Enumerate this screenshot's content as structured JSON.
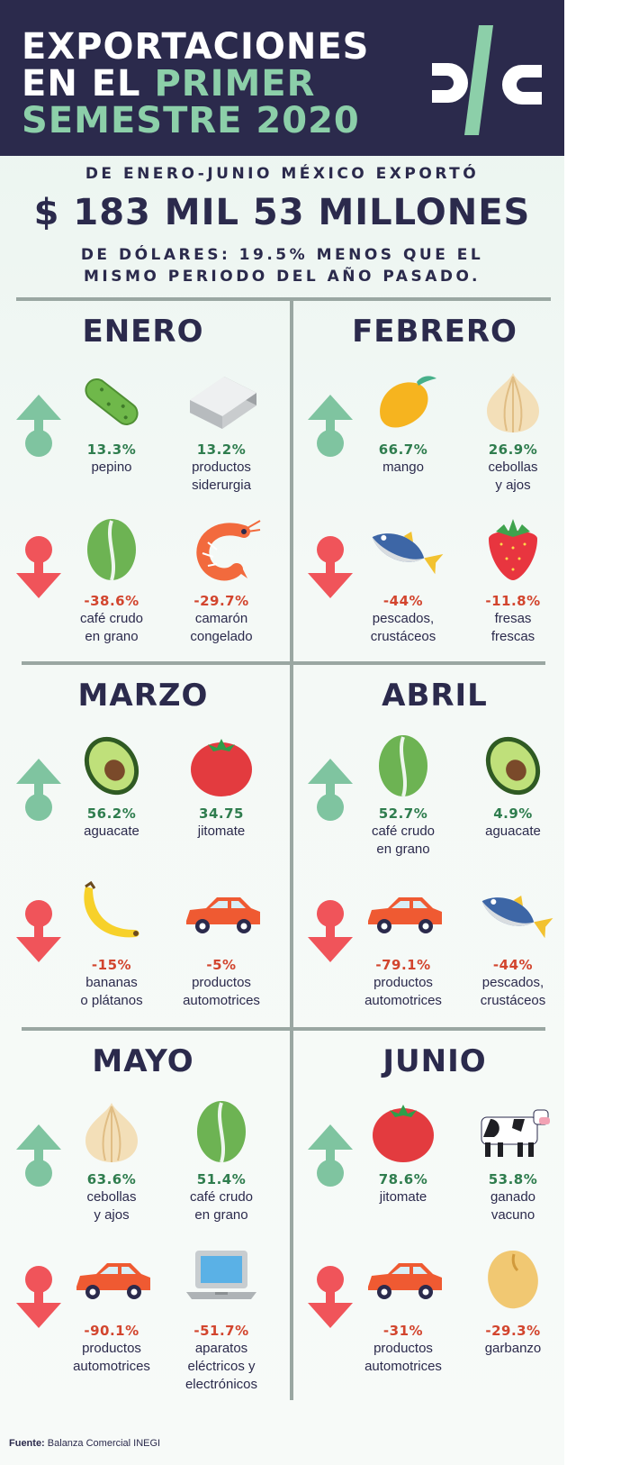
{
  "header": {
    "title_lines": [
      "EXPORTACIONES",
      "EN EL",
      "PRIMER",
      "SEMESTRE 2020"
    ]
  },
  "intro": {
    "line1": "DE ENERO-JUNIO MÉXICO EXPORTÓ",
    "amount": "$ 183 MIL 53 MILLONES",
    "line2_a": "DE DÓLARES: ",
    "line2_b": "19.5% MENOS",
    "line2_c": " QUE EL",
    "line3": "MISMO PERIODO DEL AÑO PASADO."
  },
  "months": [
    {
      "name": "ENERO",
      "up": [
        {
          "pct": "13.3%",
          "label": [
            "pepino"
          ],
          "icon": "cucumber-icon"
        },
        {
          "pct": "13.2%",
          "label": [
            "productos",
            "siderurgia"
          ],
          "icon": "steel-bar-icon"
        }
      ],
      "down": [
        {
          "pct": "-38.6%",
          "label": [
            "café crudo",
            "en grano"
          ],
          "icon": "coffee-bean-icon"
        },
        {
          "pct": "-29.7%",
          "label": [
            "camarón",
            "congelado"
          ],
          "icon": "shrimp-icon"
        }
      ]
    },
    {
      "name": "FEBRERO",
      "up": [
        {
          "pct": "66.7%",
          "label": [
            "mango"
          ],
          "icon": "mango-icon"
        },
        {
          "pct": "26.9%",
          "label": [
            "cebollas",
            "y ajos"
          ],
          "icon": "garlic-icon"
        }
      ],
      "down": [
        {
          "pct": "-44%",
          "label": [
            "pescados,",
            "crustáceos"
          ],
          "icon": "fish-icon"
        },
        {
          "pct": "-11.8%",
          "label": [
            "fresas",
            "frescas"
          ],
          "icon": "strawberry-icon"
        }
      ]
    },
    {
      "name": "MARZO",
      "up": [
        {
          "pct": "56.2%",
          "label": [
            "aguacate"
          ],
          "icon": "avocado-icon"
        },
        {
          "pct": "34.75",
          "label": [
            "jitomate"
          ],
          "icon": "tomato-icon"
        }
      ],
      "down": [
        {
          "pct": "-15%",
          "label": [
            "bananas",
            "o plátanos"
          ],
          "icon": "banana-icon"
        },
        {
          "pct": "-5%",
          "label": [
            "productos",
            "automotrices"
          ],
          "icon": "car-icon"
        }
      ]
    },
    {
      "name": "ABRIL",
      "up": [
        {
          "pct": "52.7%",
          "label": [
            "café crudo",
            "en grano"
          ],
          "icon": "coffee-bean-icon"
        },
        {
          "pct": "4.9%",
          "label": [
            "aguacate"
          ],
          "icon": "avocado-icon"
        }
      ],
      "down": [
        {
          "pct": "-79.1%",
          "label": [
            "productos",
            "automotrices"
          ],
          "icon": "car-icon"
        },
        {
          "pct": "-44%",
          "label": [
            "pescados,",
            "crustáceos"
          ],
          "icon": "fish-icon"
        }
      ]
    },
    {
      "name": "MAYO",
      "up": [
        {
          "pct": "63.6%",
          "label": [
            "cebollas",
            "y ajos"
          ],
          "icon": "garlic-icon"
        },
        {
          "pct": "51.4%",
          "label": [
            "café crudo",
            "en grano"
          ],
          "icon": "coffee-bean-icon"
        }
      ],
      "down": [
        {
          "pct": "-90.1%",
          "label": [
            "productos",
            "automotrices"
          ],
          "icon": "car-icon"
        },
        {
          "pct": "-51.7%",
          "label": [
            "aparatos",
            "eléctricos y",
            "electrónicos"
          ],
          "icon": "laptop-icon"
        }
      ]
    },
    {
      "name": "JUNIO",
      "up": [
        {
          "pct": "78.6%",
          "label": [
            "jitomate"
          ],
          "icon": "tomato-icon"
        },
        {
          "pct": "53.8%",
          "label": [
            "ganado",
            "vacuno"
          ],
          "icon": "cow-icon"
        }
      ],
      "down": [
        {
          "pct": "-31%",
          "label": [
            "productos",
            "automotrices"
          ],
          "icon": "car-icon"
        },
        {
          "pct": "-29.3%",
          "label": [
            "garbanzo"
          ],
          "icon": "chickpea-icon"
        }
      ]
    }
  ],
  "footer": {
    "label": "Fuente:",
    "source": " Balanza Comercial INEGI"
  },
  "colors": {
    "navy": "#2b2a4c",
    "green_accent": "#8ccfa9",
    "up_arrow": "#7fc4a0",
    "down_arrow": "#f0545a",
    "up_text": "#2f7d4e",
    "down_text": "#d2452e"
  }
}
